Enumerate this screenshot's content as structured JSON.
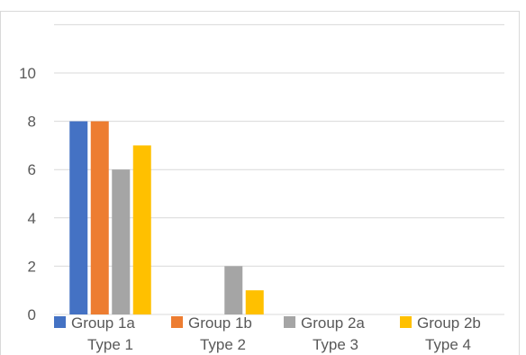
{
  "chart_data": {
    "type": "bar",
    "categories": [
      "Type 1",
      "Type 2",
      "Type 3",
      "Type 4"
    ],
    "series": [
      {
        "name": "Group 1a",
        "color": "#4472C4",
        "values": [
          8,
          0,
          0,
          0
        ]
      },
      {
        "name": "Group 1b",
        "color": "#ED7D31",
        "values": [
          8,
          0,
          0,
          0
        ]
      },
      {
        "name": "Group 2a",
        "color": "#A5A5A5",
        "values": [
          6,
          2,
          0,
          0
        ]
      },
      {
        "name": "Group 2b",
        "color": "#FFC000",
        "values": [
          7,
          1,
          0,
          0
        ]
      }
    ],
    "y_ticks": [
      "0",
      "2",
      "4",
      "6",
      "8",
      "10"
    ],
    "ylim": [
      0,
      12
    ],
    "grid": true,
    "legend_position": "bottom",
    "title": "",
    "xlabel": "",
    "ylabel": ""
  }
}
